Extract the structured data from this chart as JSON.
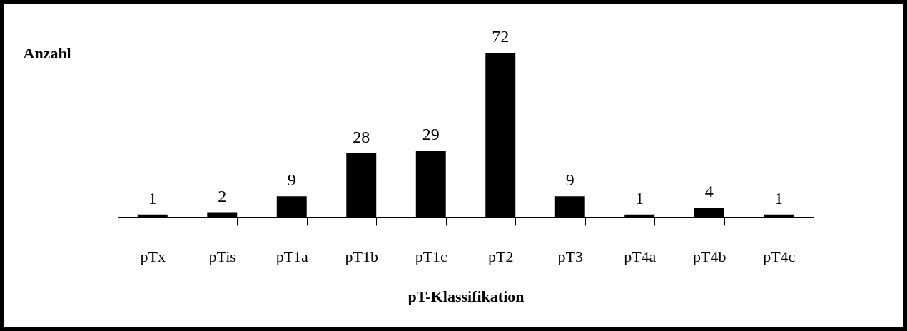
{
  "chart_data": {
    "type": "bar",
    "ylabel": "Anzahl",
    "xlabel": "pT-Klassifikation",
    "categories": [
      "pTx",
      "pTis",
      "pT1a",
      "pT1b",
      "pT1c",
      "pT2",
      "pT3",
      "pT4a",
      "pT4b",
      "pT4c"
    ],
    "values": [
      1,
      2,
      9,
      28,
      29,
      72,
      9,
      1,
      4,
      1
    ],
    "color": "#000000",
    "data_labels": true,
    "grid": false
  }
}
